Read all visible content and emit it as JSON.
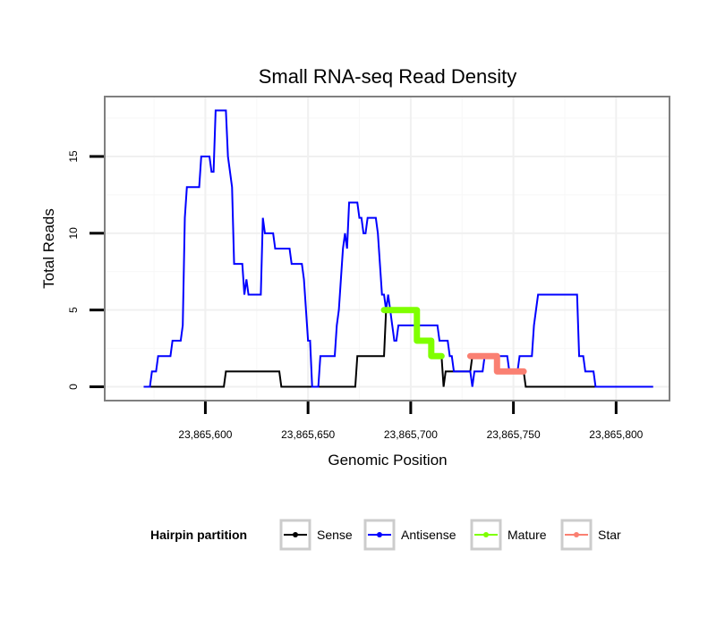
{
  "chart_data": {
    "type": "line",
    "title": "Small RNA-seq Read Density",
    "xlabel": "Genomic Position",
    "ylabel": "Total Reads",
    "xlim": [
      23865551,
      23865826
    ],
    "ylim": [
      -0.9,
      18.9
    ],
    "x_ticks": [
      23865600,
      23865650,
      23865700,
      23865750,
      23865800
    ],
    "x_tick_labels": [
      "23,865,600",
      "23,865,650",
      "23,865,700",
      "23,865,750",
      "23,865,800"
    ],
    "y_ticks": [
      0,
      5,
      10,
      15
    ],
    "y_tick_labels": [
      "0",
      "5",
      "10",
      "15"
    ],
    "grid": true,
    "legend": {
      "title": "Hairpin partition",
      "position": "bottom",
      "entries": [
        "Sense",
        "Antisense",
        "Mature",
        "Star"
      ]
    },
    "series": [
      {
        "name": "Sense",
        "color": "#000000",
        "width": 2,
        "points": [
          [
            23865570,
            0
          ],
          [
            23865609,
            0
          ],
          [
            23865610,
            1
          ],
          [
            23865636,
            1
          ],
          [
            23865637,
            0
          ],
          [
            23865673,
            0
          ],
          [
            23865674,
            2
          ],
          [
            23865687,
            2
          ],
          [
            23865688,
            5
          ],
          [
            23865703,
            5
          ],
          [
            23865704,
            3
          ],
          [
            23865710,
            3
          ],
          [
            23865711,
            2
          ],
          [
            23865715,
            2
          ],
          [
            23865716,
            0
          ],
          [
            23865717,
            1
          ],
          [
            23865729,
            1
          ],
          [
            23865730,
            2
          ],
          [
            23865742,
            2
          ],
          [
            23865743,
            1
          ],
          [
            23865755,
            1
          ],
          [
            23865756,
            0
          ],
          [
            23865818,
            0
          ]
        ]
      },
      {
        "name": "Antisense",
        "color": "#0000ff",
        "width": 2,
        "points": [
          [
            23865570,
            0
          ],
          [
            23865573,
            0
          ],
          [
            23865574,
            1
          ],
          [
            23865576,
            1
          ],
          [
            23865577,
            2
          ],
          [
            23865583,
            2
          ],
          [
            23865584,
            3
          ],
          [
            23865588,
            3
          ],
          [
            23865589,
            4
          ],
          [
            23865590,
            11
          ],
          [
            23865591,
            13
          ],
          [
            23865597,
            13
          ],
          [
            23865598,
            15
          ],
          [
            23865602,
            15
          ],
          [
            23865603,
            14
          ],
          [
            23865604,
            14
          ],
          [
            23865605,
            18
          ],
          [
            23865610,
            18
          ],
          [
            23865611,
            15
          ],
          [
            23865612,
            14
          ],
          [
            23865613,
            13
          ],
          [
            23865614,
            8
          ],
          [
            23865618,
            8
          ],
          [
            23865619,
            6
          ],
          [
            23865620,
            7
          ],
          [
            23865621,
            6
          ],
          [
            23865627,
            6
          ],
          [
            23865628,
            11
          ],
          [
            23865629,
            10
          ],
          [
            23865633,
            10
          ],
          [
            23865634,
            9
          ],
          [
            23865641,
            9
          ],
          [
            23865642,
            8
          ],
          [
            23865647,
            8
          ],
          [
            23865648,
            7
          ],
          [
            23865649,
            5
          ],
          [
            23865650,
            3
          ],
          [
            23865651,
            3
          ],
          [
            23865652,
            0
          ],
          [
            23865655,
            0
          ],
          [
            23865656,
            2
          ],
          [
            23865663,
            2
          ],
          [
            23865664,
            4
          ],
          [
            23865665,
            5
          ],
          [
            23865666,
            7
          ],
          [
            23865667,
            9
          ],
          [
            23865668,
            10
          ],
          [
            23865669,
            9
          ],
          [
            23865670,
            12
          ],
          [
            23865674,
            12
          ],
          [
            23865675,
            11
          ],
          [
            23865676,
            11
          ],
          [
            23865677,
            10
          ],
          [
            23865678,
            10
          ],
          [
            23865679,
            11
          ],
          [
            23865683,
            11
          ],
          [
            23865684,
            10
          ],
          [
            23865685,
            8
          ],
          [
            23865686,
            6
          ],
          [
            23865687,
            6
          ],
          [
            23865688,
            5
          ],
          [
            23865689,
            6
          ],
          [
            23865690,
            5
          ],
          [
            23865691,
            4
          ],
          [
            23865692,
            3
          ],
          [
            23865693,
            3
          ],
          [
            23865694,
            4
          ],
          [
            23865702,
            4
          ],
          [
            23865703,
            3
          ],
          [
            23865704,
            4
          ],
          [
            23865713,
            4
          ],
          [
            23865714,
            3
          ],
          [
            23865718,
            3
          ],
          [
            23865719,
            2
          ],
          [
            23865720,
            2
          ],
          [
            23865721,
            1
          ],
          [
            23865729,
            1
          ],
          [
            23865730,
            0
          ],
          [
            23865731,
            1
          ],
          [
            23865735,
            1
          ],
          [
            23865736,
            2
          ],
          [
            23865747,
            2
          ],
          [
            23865748,
            1
          ],
          [
            23865752,
            1
          ],
          [
            23865753,
            2
          ],
          [
            23865759,
            2
          ],
          [
            23865760,
            4
          ],
          [
            23865761,
            5
          ],
          [
            23865762,
            6
          ],
          [
            23865781,
            6
          ],
          [
            23865782,
            2
          ],
          [
            23865784,
            2
          ],
          [
            23865785,
            1
          ],
          [
            23865789,
            1
          ],
          [
            23865790,
            0
          ],
          [
            23865818,
            0
          ]
        ]
      },
      {
        "name": "Mature",
        "color": "#7fff00",
        "width": 7,
        "points": [
          [
            23865687,
            5
          ],
          [
            23865703,
            5
          ],
          [
            23865703,
            3
          ],
          [
            23865710,
            3
          ],
          [
            23865710,
            2
          ],
          [
            23865715,
            2
          ]
        ]
      },
      {
        "name": "Star",
        "color": "#fa8072",
        "width": 7,
        "points": [
          [
            23865729,
            2
          ],
          [
            23865742,
            2
          ],
          [
            23865742,
            1
          ],
          [
            23865755,
            1
          ]
        ]
      }
    ]
  }
}
